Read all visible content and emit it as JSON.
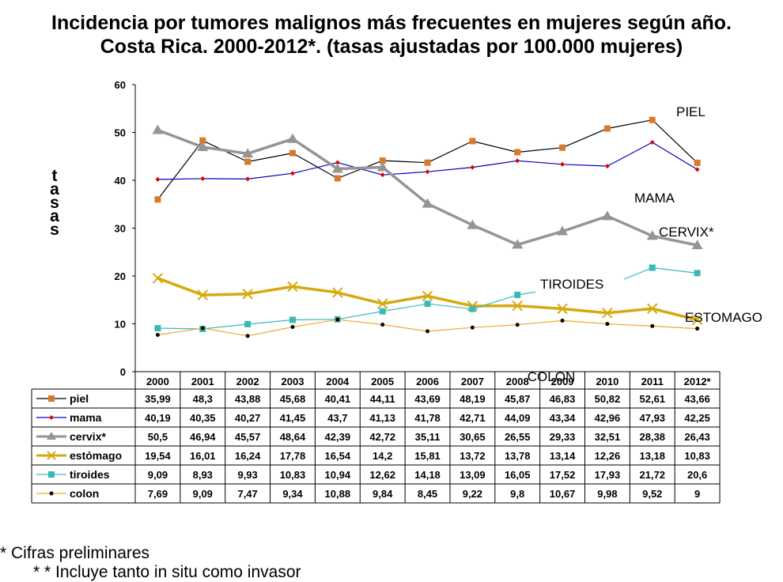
{
  "title_line1": "Incidencia por tumores malignos  más frecuentes en mujeres según año.",
  "title_line2": "Costa Rica. 2000-2012*. (tasas ajustadas por 100.000 mujeres)",
  "footnotes": [
    "* Cifras preliminares",
    "* * Incluye tanto in situ como invasor"
  ],
  "chart_data": {
    "type": "line",
    "title": "Incidencia por tumores malignos  más frecuentes en mujeres según año. Costa Rica. 2000-2012*. (tasas ajustadas por 100.000 mujeres)",
    "xlabel": "",
    "ylabel": "tasas",
    "ylim": [
      0,
      60
    ],
    "yticks": [
      0,
      10,
      20,
      30,
      40,
      50,
      60
    ],
    "grid": false,
    "categories": [
      "2000",
      "2001",
      "2002",
      "2003",
      "2004",
      "2005",
      "2006",
      "2007",
      "2008",
      "2009",
      "2010",
      "2011",
      "2012*"
    ],
    "series": [
      {
        "name": "piel",
        "label": "PIEL",
        "color": "#000000",
        "marker_color": "#d77a2b",
        "marker": "square",
        "values": [
          35.99,
          48.3,
          43.88,
          45.68,
          40.41,
          44.11,
          43.69,
          48.19,
          45.87,
          46.83,
          50.82,
          52.61,
          43.66
        ],
        "display": [
          "35,99",
          "48,3",
          "43,88",
          "45,68",
          "40,41",
          "44,11",
          "43,69",
          "48,19",
          "45,87",
          "46,83",
          "50,82",
          "52,61",
          "43,66"
        ]
      },
      {
        "name": "mama",
        "label": "MAMA",
        "color": "#0000c0",
        "marker_color": "#e00000",
        "marker": "diamond",
        "values": [
          40.19,
          40.35,
          40.27,
          41.45,
          43.7,
          41.13,
          41.78,
          42.71,
          44.09,
          43.34,
          42.96,
          47.93,
          42.25
        ],
        "display": [
          "40,19",
          "40,35",
          "40,27",
          "41,45",
          "43,7",
          "41,13",
          "41,78",
          "42,71",
          "44,09",
          "43,34",
          "42,96",
          "47,93",
          "42,25"
        ]
      },
      {
        "name": "cervix*",
        "label": "CERVIX*",
        "color": "#959595",
        "marker_color": "#959595",
        "marker": "triangle",
        "values": [
          50.5,
          46.94,
          45.57,
          48.64,
          42.39,
          42.72,
          35.11,
          30.65,
          26.55,
          29.33,
          32.51,
          28.38,
          26.43
        ],
        "display": [
          "50,5",
          "46,94",
          "45,57",
          "48,64",
          "42,39",
          "42,72",
          "35,11",
          "30,65",
          "26,55",
          "29,33",
          "32,51",
          "28,38",
          "26,43"
        ]
      },
      {
        "name": "estómago",
        "label": "ESTOMAGO",
        "color": "#d4aa10",
        "marker_color": "#d4aa10",
        "marker": "x",
        "values": [
          19.54,
          16.01,
          16.24,
          17.78,
          16.54,
          14.2,
          15.81,
          13.72,
          13.78,
          13.14,
          12.26,
          13.18,
          10.83
        ],
        "display": [
          "19,54",
          "16,01",
          "16,24",
          "17,78",
          "16,54",
          "14,2",
          "15,81",
          "13,72",
          "13,78",
          "13,14",
          "12,26",
          "13,18",
          "10,83"
        ]
      },
      {
        "name": "tiroides",
        "label": "TIROIDES",
        "color": "#3cb8b8",
        "marker_color": "#3cb8b8",
        "marker": "square",
        "values": [
          9.09,
          8.93,
          9.93,
          10.83,
          10.94,
          12.62,
          14.18,
          13.09,
          16.05,
          17.52,
          17.93,
          21.72,
          20.6
        ],
        "display": [
          "9,09",
          "8,93",
          "9,93",
          "10,83",
          "10,94",
          "12,62",
          "14,18",
          "13,09",
          "16,05",
          "17,52",
          "17,93",
          "21,72",
          "20,6"
        ]
      },
      {
        "name": "colon",
        "label": "COLON",
        "color": "#f0a830",
        "marker_color": "#000000",
        "marker": "dot",
        "values": [
          7.69,
          9.09,
          7.47,
          9.34,
          10.88,
          9.84,
          8.45,
          9.22,
          9.8,
          10.67,
          9.98,
          9.52,
          9
        ],
        "display": [
          "7,69",
          "9,09",
          "7,47",
          "9,34",
          "10,88",
          "9,84",
          "8,45",
          "9,22",
          "9,8",
          "10,67",
          "9,98",
          "9,52",
          "9"
        ]
      }
    ]
  }
}
